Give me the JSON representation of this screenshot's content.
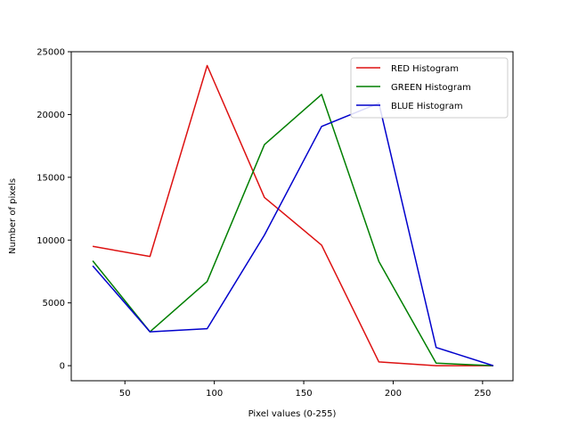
{
  "chart_data": {
    "type": "line",
    "title": "",
    "xlabel": "Pixel values (0-255)",
    "ylabel": "Number of pixels",
    "xlim": [
      20,
      267
    ],
    "ylim": [
      -1200,
      25000
    ],
    "x_ticks": [
      50,
      100,
      150,
      200,
      250
    ],
    "y_ticks": [
      0,
      5000,
      10000,
      15000,
      20000,
      25000
    ],
    "x": [
      32,
      64,
      96,
      128,
      160,
      192,
      224,
      256
    ],
    "grid": false,
    "legend_position": "top-right",
    "series": [
      {
        "name": "RED Histogram",
        "color": "#dd1111",
        "values": [
          9500,
          8700,
          23900,
          13400,
          9600,
          300,
          0,
          0
        ]
      },
      {
        "name": "GREEN Histogram",
        "color": "#007f00",
        "values": [
          8350,
          2700,
          6700,
          17600,
          21600,
          8300,
          200,
          0
        ]
      },
      {
        "name": "BLUE Histogram",
        "color": "#0000cc",
        "values": [
          7950,
          2700,
          2950,
          10400,
          19050,
          20900,
          1450,
          0
        ]
      }
    ]
  }
}
